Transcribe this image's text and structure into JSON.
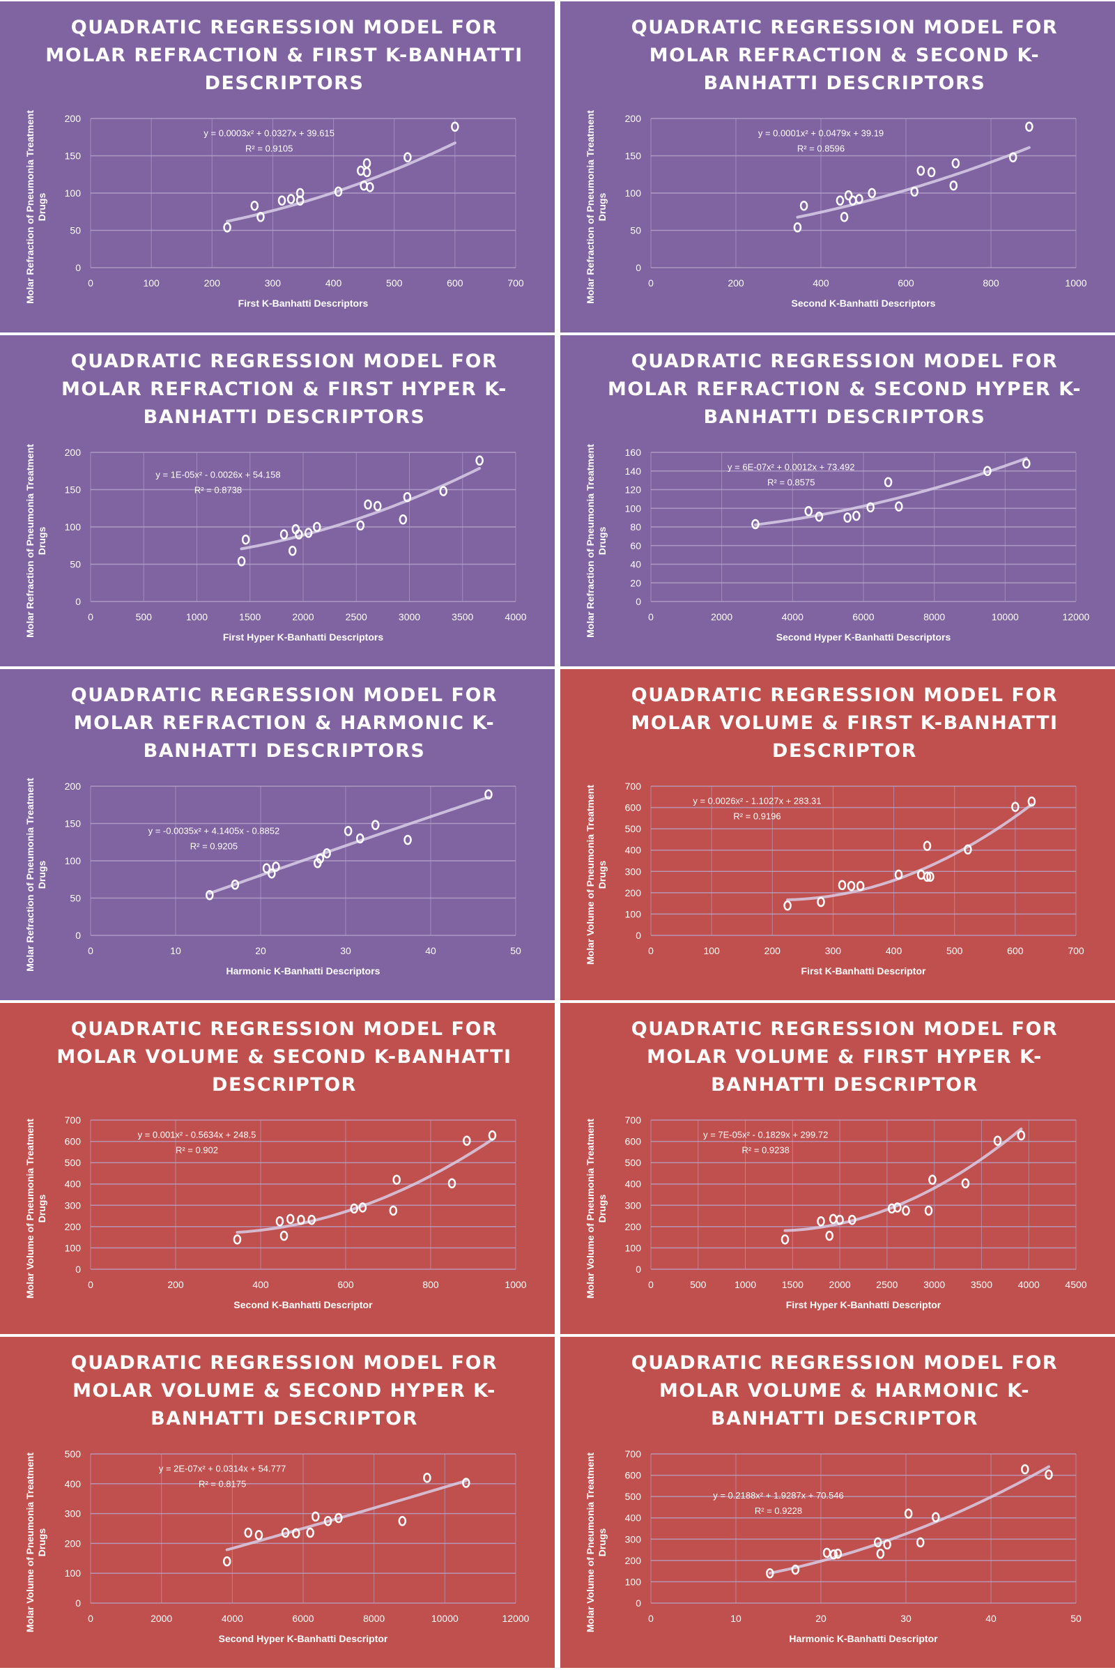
{
  "colors": {
    "refraction_bg": "#8064A2",
    "volume_bg": "#C0504D",
    "grid": "#B7A6CC",
    "trend": "#D8CCE6",
    "marker": "#FFFFFF",
    "text": "#FFFFFF"
  },
  "chart_data": [
    {
      "type": "scatter",
      "theme": "refraction",
      "title": "QUADRATIC REGRESSION MODEL FOR MOLAR REFRACTION & FIRST K-BANHATTI DESCRIPTORS",
      "xlabel": "First K-Banhatti Descriptors",
      "ylabel": "Molar Refraction of Pneumonia Treatment Drugs",
      "xlim": [
        0,
        700
      ],
      "xstep": 100,
      "ylim": [
        0,
        200
      ],
      "ystep": 50,
      "grid": true,
      "points": [
        [
          225,
          54
        ],
        [
          270,
          83
        ],
        [
          280,
          68
        ],
        [
          315,
          90
        ],
        [
          330,
          92
        ],
        [
          345,
          90
        ],
        [
          345,
          100
        ],
        [
          408,
          102
        ],
        [
          445,
          130
        ],
        [
          450,
          110
        ],
        [
          455,
          140
        ],
        [
          455,
          128
        ],
        [
          460,
          108
        ],
        [
          522,
          148
        ],
        [
          600,
          189
        ]
      ],
      "trend": {
        "coeffs": [
          0.0003,
          0.0327,
          39.615
        ],
        "equation": "y = 0.0003x² + 0.0327x + 39.615",
        "r2": "R² = 0.9105"
      }
    },
    {
      "type": "scatter",
      "theme": "refraction",
      "title": "QUADRATIC REGRESSION MODEL FOR MOLAR REFRACTION & SECOND K-BANHATTI DESCRIPTORS",
      "xlabel": "Second K-Banhatti Descriptors",
      "ylabel": "Molar Refraction of Pneumonia Treatment Drugs",
      "xlim": [
        0,
        1000
      ],
      "xstep": 200,
      "ylim": [
        0,
        200
      ],
      "ystep": 50,
      "grid": true,
      "points": [
        [
          345,
          54
        ],
        [
          360,
          83
        ],
        [
          445,
          90
        ],
        [
          455,
          68
        ],
        [
          465,
          97
        ],
        [
          475,
          90
        ],
        [
          490,
          92
        ],
        [
          520,
          100
        ],
        [
          620,
          102
        ],
        [
          635,
          130
        ],
        [
          660,
          128
        ],
        [
          712,
          110
        ],
        [
          717,
          140
        ],
        [
          852,
          148
        ],
        [
          890,
          189
        ]
      ],
      "trend": {
        "coeffs": [
          0.0001,
          0.0479,
          39.19
        ],
        "equation": "y = 0.0001x² + 0.0479x + 39.19",
        "r2": "R² = 0.8596"
      }
    },
    {
      "type": "scatter",
      "theme": "refraction",
      "title": "QUADRATIC REGRESSION MODEL FOR MOLAR REFRACTION & FIRST HYPER K-BANHATTI DESCRIPTORS",
      "xlabel": "First Hyper K-Banhatti Descriptors",
      "ylabel": "Molar Refraction of Pneumonia Treatment Drugs",
      "xlim": [
        0,
        4000
      ],
      "xstep": 500,
      "ylim": [
        0,
        200
      ],
      "ystep": 50,
      "grid": true,
      "points": [
        [
          1420,
          54
        ],
        [
          1460,
          83
        ],
        [
          1820,
          90
        ],
        [
          1900,
          68
        ],
        [
          1930,
          97
        ],
        [
          1960,
          90
        ],
        [
          2050,
          92
        ],
        [
          2130,
          100
        ],
        [
          2540,
          102
        ],
        [
          2610,
          130
        ],
        [
          2700,
          128
        ],
        [
          2940,
          110
        ],
        [
          2980,
          140
        ],
        [
          3320,
          148
        ],
        [
          3660,
          189
        ]
      ],
      "trend": {
        "coeffs": [
          1e-05,
          -0.0026,
          54.158
        ],
        "equation": "y = 1E-05x² - 0.0026x + 54.158",
        "r2": "R² = 0.8738"
      }
    },
    {
      "type": "scatter",
      "theme": "refraction",
      "title": "QUADRATIC REGRESSION MODEL FOR MOLAR REFRACTION & SECOND HYPER K-BANHATTI DESCRIPTORS",
      "xlabel": "Second Hyper K-Banhatti Descriptors",
      "ylabel": "Molar Refraction of Pneumonia Treatment Drugs",
      "xlim": [
        0,
        12000
      ],
      "xstep": 2000,
      "ylim": [
        0,
        160
      ],
      "ystep": 20,
      "grid": true,
      "points": [
        [
          2950,
          83
        ],
        [
          4450,
          97
        ],
        [
          4750,
          91
        ],
        [
          5550,
          90
        ],
        [
          5800,
          92
        ],
        [
          6200,
          101
        ],
        [
          6700,
          128
        ],
        [
          7000,
          102
        ],
        [
          9500,
          140
        ],
        [
          10600,
          148
        ]
      ],
      "trend": {
        "coeffs": [
          6e-07,
          0.0012,
          73.492
        ],
        "equation": "y = 6E-07x² + 0.0012x + 73.492",
        "r2": "R² = 0.8575"
      }
    },
    {
      "type": "scatter",
      "theme": "refraction",
      "title": "QUADRATIC REGRESSION MODEL FOR MOLAR REFRACTION & HARMONIC K-BANHATTI DESCRIPTORS",
      "xlabel": "Harmonic K-Banhatti Descriptors",
      "ylabel": "Molar Refraction of Pneumonia Treatment Drugs",
      "xlim": [
        0,
        50
      ],
      "xstep": 10,
      "ylim": [
        0,
        200
      ],
      "ystep": 50,
      "grid": true,
      "points": [
        [
          14,
          54
        ],
        [
          17,
          68
        ],
        [
          20.7,
          90
        ],
        [
          21.3,
          83
        ],
        [
          21.8,
          92
        ],
        [
          26.7,
          97
        ],
        [
          27,
          103
        ],
        [
          27.8,
          110
        ],
        [
          30.3,
          140
        ],
        [
          31.7,
          130
        ],
        [
          33.5,
          148
        ],
        [
          37.3,
          128
        ],
        [
          46.8,
          189
        ]
      ],
      "trend": {
        "coeffs": [
          -0.0035,
          4.1405,
          -0.8852
        ],
        "equation": "y = -0.0035x² + 4.1405x - 0.8852",
        "r2": "R² = 0.9205"
      }
    },
    {
      "type": "scatter",
      "theme": "volume",
      "title": "QUADRATIC REGRESSION MODEL FOR MOLAR VOLUME & FIRST K-BANHATTI DESCRIPTOR",
      "xlabel": "First K-Banhatti Descriptor",
      "ylabel": "Molar Volume of Pneumonia Treatment Drugs",
      "xlim": [
        0,
        700
      ],
      "xstep": 100,
      "ylim": [
        0,
        700
      ],
      "ystep": 100,
      "grid": true,
      "points": [
        [
          225,
          140
        ],
        [
          280,
          157
        ],
        [
          315,
          236
        ],
        [
          330,
          232
        ],
        [
          345,
          232
        ],
        [
          408,
          285
        ],
        [
          445,
          285
        ],
        [
          455,
          420
        ],
        [
          455,
          275
        ],
        [
          460,
          275
        ],
        [
          522,
          403
        ],
        [
          600,
          603
        ],
        [
          627,
          628
        ]
      ],
      "trend": {
        "coeffs": [
          0.0026,
          -1.1027,
          283.31
        ],
        "equation": "y = 0.0026x² - 1.1027x + 283.31",
        "r2": "R² = 0.9196"
      }
    },
    {
      "type": "scatter",
      "theme": "volume",
      "title": "QUADRATIC REGRESSION MODEL FOR MOLAR VOLUME & SECOND K-BANHATTI DESCRIPTOR",
      "xlabel": "Second K-Banhatti Descriptor",
      "ylabel": "Molar Volume of Pneumonia Treatment Drugs",
      "xlim": [
        0,
        1000
      ],
      "xstep": 200,
      "ylim": [
        0,
        700
      ],
      "ystep": 100,
      "grid": true,
      "points": [
        [
          345,
          140
        ],
        [
          445,
          225
        ],
        [
          455,
          157
        ],
        [
          470,
          236
        ],
        [
          495,
          232
        ],
        [
          520,
          232
        ],
        [
          620,
          285
        ],
        [
          640,
          290
        ],
        [
          712,
          275
        ],
        [
          720,
          420
        ],
        [
          850,
          403
        ],
        [
          885,
          603
        ],
        [
          945,
          628
        ]
      ],
      "trend": {
        "coeffs": [
          0.001,
          -0.5634,
          248.5
        ],
        "equation": "y = 0.001x² - 0.5634x + 248.5",
        "r2": "R² = 0.902"
      }
    },
    {
      "type": "scatter",
      "theme": "volume",
      "title": "QUADRATIC REGRESSION MODEL FOR MOLAR VOLUME & FIRST HYPER K-BANHATTI DESCRIPTOR",
      "xlabel": "First Hyper K-Banhatti Descriptor",
      "ylabel": "Molar Volume of Pneumonia Treatment Drugs",
      "xlim": [
        0,
        4500
      ],
      "xstep": 500,
      "ylim": [
        0,
        700
      ],
      "ystep": 100,
      "grid": true,
      "points": [
        [
          1420,
          140
        ],
        [
          1800,
          225
        ],
        [
          1890,
          157
        ],
        [
          1930,
          236
        ],
        [
          2000,
          232
        ],
        [
          2130,
          232
        ],
        [
          2550,
          285
        ],
        [
          2610,
          290
        ],
        [
          2700,
          275
        ],
        [
          2940,
          275
        ],
        [
          2980,
          420
        ],
        [
          3330,
          403
        ],
        [
          3670,
          603
        ],
        [
          3920,
          628
        ]
      ],
      "trend": {
        "coeffs": [
          7e-05,
          -0.1829,
          299.72
        ],
        "equation": "y = 7E-05x² - 0.1829x + 299.72",
        "r2": "R² = 0.9238"
      }
    },
    {
      "type": "scatter",
      "theme": "volume",
      "title": "QUADRATIC REGRESSION MODEL FOR MOLAR VOLUME & SECOND HYPER K-BANHATTI DESCRIPTOR",
      "xlabel": "Second Hyper K-Banhatti Descriptor",
      "ylabel": "Molar Volume of Pneumonia Treatment Drugs",
      "xlim": [
        0,
        12000
      ],
      "xstep": 2000,
      "ylim": [
        0,
        500
      ],
      "ystep": 100,
      "grid": true,
      "points": [
        [
          3850,
          140
        ],
        [
          4450,
          236
        ],
        [
          4750,
          228
        ],
        [
          5500,
          236
        ],
        [
          5800,
          234
        ],
        [
          6200,
          236
        ],
        [
          6350,
          290
        ],
        [
          6700,
          275
        ],
        [
          7000,
          285
        ],
        [
          8800,
          275
        ],
        [
          9500,
          420
        ],
        [
          10600,
          403
        ]
      ],
      "trend": {
        "coeffs": [
          2e-07,
          0.0314,
          54.777
        ],
        "equation": "y = 2E-07x² + 0.0314x + 54.777",
        "r2": "R² = 0.8175"
      }
    },
    {
      "type": "scatter",
      "theme": "volume",
      "title": "QUADRATIC REGRESSION MODEL FOR MOLAR VOLUME & HARMONIC K-BANHATTI DESCRIPTOR",
      "xlabel": "Harmonic K-Banhatti Descriptor",
      "ylabel": "Molar Volume of Pneumonia Treatment Drugs",
      "xlim": [
        0,
        50
      ],
      "xstep": 10,
      "ylim": [
        0,
        700
      ],
      "ystep": 100,
      "grid": true,
      "points": [
        [
          14,
          140
        ],
        [
          17,
          157
        ],
        [
          20.7,
          236
        ],
        [
          21.5,
          228
        ],
        [
          22,
          232
        ],
        [
          26.7,
          285
        ],
        [
          27,
          232
        ],
        [
          27.8,
          275
        ],
        [
          30.3,
          420
        ],
        [
          31.7,
          285
        ],
        [
          33.5,
          403
        ],
        [
          44,
          628
        ],
        [
          46.8,
          603
        ]
      ],
      "trend": {
        "coeffs": [
          0.2188,
          1.9287,
          70.546
        ],
        "equation": "y = 0.2188x² + 1.9287x + 70.546",
        "r2": "R² = 0.9228"
      }
    }
  ]
}
